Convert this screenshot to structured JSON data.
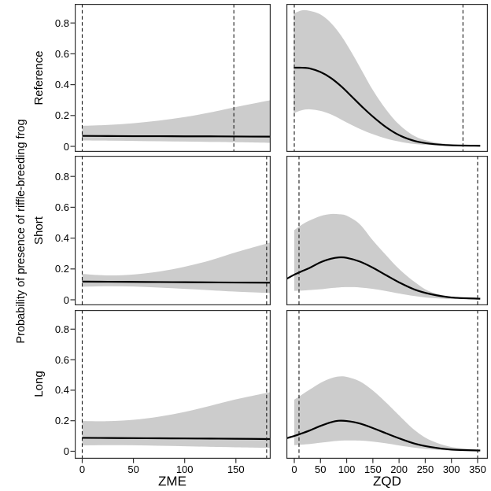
{
  "figure": {
    "ylabel": "Probability of presence of riffle-breeding frog",
    "row_labels": [
      "Reference",
      "Short",
      "Long"
    ],
    "col_xlabels": [
      "ZME",
      "ZQD"
    ],
    "ytick_labels": [
      "0",
      "0.2",
      "0.4",
      "0.6",
      "0.8"
    ],
    "colors": {
      "band": "#cccccc",
      "line": "#000000",
      "dashed": "#1a1a1a",
      "border": "#303030",
      "background": "#ffffff",
      "text": "#000000"
    }
  },
  "chart_data": [
    {
      "type": "line+area",
      "row": "Reference",
      "xlabel": "ZME",
      "ylim": [
        -0.04,
        0.92
      ],
      "xlim": [
        -7,
        184
      ],
      "yticks": [
        0,
        0.2,
        0.4,
        0.6,
        0.8
      ],
      "xticks": [
        0,
        50,
        100,
        150
      ],
      "show_xtick_labels": false,
      "dashed_x": [
        0,
        148
      ],
      "x": [
        0,
        25,
        50,
        75,
        100,
        125,
        150,
        184
      ],
      "fit": [
        0.068,
        0.067,
        0.066,
        0.066,
        0.065,
        0.065,
        0.064,
        0.063
      ],
      "band_x": [
        0,
        25,
        50,
        75,
        100,
        125,
        150,
        184
      ],
      "lower": [
        0.038,
        0.037,
        0.035,
        0.033,
        0.031,
        0.029,
        0.027,
        0.023
      ],
      "upper": [
        0.133,
        0.139,
        0.15,
        0.167,
        0.19,
        0.22,
        0.255,
        0.3
      ]
    },
    {
      "type": "line+area",
      "row": "Reference",
      "xlabel": "ZQD",
      "ylim": [
        -0.04,
        0.92
      ],
      "xlim": [
        -15,
        369
      ],
      "yticks": [
        0,
        0.2,
        0.4,
        0.6,
        0.8
      ],
      "xticks": [
        0,
        50,
        100,
        150,
        200,
        250,
        300,
        350
      ],
      "show_xtick_labels": false,
      "dashed_x": [
        0,
        322
      ],
      "x": [
        -1,
        15,
        30,
        50,
        70,
        90,
        110,
        130,
        150,
        175,
        200,
        230,
        260,
        300,
        355
      ],
      "fit": [
        0.51,
        0.51,
        0.505,
        0.482,
        0.443,
        0.388,
        0.322,
        0.255,
        0.193,
        0.125,
        0.073,
        0.035,
        0.017,
        0.007,
        0.004
      ],
      "band_x": [
        -1,
        15,
        30,
        50,
        70,
        90,
        110,
        130,
        150,
        175,
        200,
        230,
        260,
        300,
        355
      ],
      "lower": [
        0.215,
        0.235,
        0.24,
        0.23,
        0.207,
        0.173,
        0.138,
        0.106,
        0.079,
        0.051,
        0.031,
        0.015,
        0.008,
        0.003,
        0.002
      ],
      "upper": [
        0.862,
        0.882,
        0.878,
        0.855,
        0.8,
        0.715,
        0.605,
        0.485,
        0.365,
        0.24,
        0.142,
        0.066,
        0.032,
        0.013,
        0.007
      ]
    },
    {
      "type": "line+area",
      "row": "Short",
      "xlabel": "ZME",
      "ylim": [
        -0.04,
        0.92
      ],
      "xlim": [
        -7,
        184
      ],
      "yticks": [
        0,
        0.2,
        0.4,
        0.6,
        0.8
      ],
      "xticks": [
        0,
        50,
        100,
        150
      ],
      "show_xtick_labels": false,
      "dashed_x": [
        0,
        180
      ],
      "x": [
        0,
        25,
        50,
        75,
        100,
        125,
        150,
        184
      ],
      "fit": [
        0.118,
        0.117,
        0.116,
        0.115,
        0.114,
        0.113,
        0.112,
        0.111
      ],
      "band_x": [
        0,
        25,
        50,
        75,
        100,
        125,
        150,
        184
      ],
      "lower": [
        0.085,
        0.088,
        0.086,
        0.079,
        0.071,
        0.062,
        0.053,
        0.044
      ],
      "upper": [
        0.168,
        0.158,
        0.164,
        0.183,
        0.214,
        0.256,
        0.308,
        0.372
      ]
    },
    {
      "type": "line+area",
      "row": "Short",
      "xlabel": "ZQD",
      "ylim": [
        -0.04,
        0.92
      ],
      "xlim": [
        -15,
        369
      ],
      "yticks": [
        0,
        0.2,
        0.4,
        0.6,
        0.8
      ],
      "xticks": [
        0,
        50,
        100,
        150,
        200,
        250,
        300,
        350
      ],
      "show_xtick_labels": false,
      "dashed_x": [
        9,
        350
      ],
      "x": [
        -15,
        0,
        15,
        30,
        50,
        70,
        85,
        100,
        125,
        150,
        175,
        200,
        230,
        260,
        300,
        355
      ],
      "fit": [
        0.135,
        0.163,
        0.186,
        0.208,
        0.243,
        0.266,
        0.275,
        0.272,
        0.248,
        0.208,
        0.16,
        0.113,
        0.066,
        0.037,
        0.015,
        0.007
      ],
      "band_x": [
        0,
        15,
        30,
        50,
        70,
        85,
        100,
        125,
        150,
        175,
        200,
        230,
        260,
        300,
        350
      ],
      "lower": [
        0.058,
        0.06,
        0.063,
        0.068,
        0.076,
        0.08,
        0.082,
        0.08,
        0.071,
        0.057,
        0.041,
        0.024,
        0.012,
        0.005,
        0.002
      ],
      "upper": [
        0.452,
        0.488,
        0.515,
        0.543,
        0.556,
        0.555,
        0.545,
        0.49,
        0.385,
        0.29,
        0.2,
        0.115,
        0.052,
        0.02,
        0.009
      ]
    },
    {
      "type": "line+area",
      "row": "Long",
      "xlabel": "ZME",
      "ylim": [
        -0.04,
        0.92
      ],
      "xlim": [
        -7,
        184
      ],
      "yticks": [
        0,
        0.2,
        0.4,
        0.6,
        0.8
      ],
      "xticks": [
        0,
        50,
        100,
        150
      ],
      "show_xtick_labels": true,
      "dashed_x": [
        0,
        180
      ],
      "x": [
        0,
        25,
        50,
        75,
        100,
        125,
        150,
        184
      ],
      "fit": [
        0.088,
        0.087,
        0.086,
        0.085,
        0.084,
        0.083,
        0.082,
        0.08
      ],
      "band_x": [
        0,
        25,
        50,
        75,
        100,
        125,
        150,
        184
      ],
      "lower": [
        0.038,
        0.04,
        0.039,
        0.036,
        0.033,
        0.029,
        0.026,
        0.022
      ],
      "upper": [
        0.198,
        0.197,
        0.206,
        0.227,
        0.258,
        0.298,
        0.34,
        0.388
      ]
    },
    {
      "type": "line+area",
      "row": "Long",
      "xlabel": "ZQD",
      "ylim": [
        -0.04,
        0.92
      ],
      "xlim": [
        -15,
        369
      ],
      "yticks": [
        0,
        0.2,
        0.4,
        0.6,
        0.8
      ],
      "xticks": [
        0,
        50,
        100,
        150,
        200,
        250,
        300,
        350
      ],
      "show_xtick_labels": true,
      "dashed_x": [
        9,
        350
      ],
      "x": [
        -15,
        0,
        15,
        30,
        50,
        70,
        85,
        100,
        125,
        150,
        175,
        200,
        230,
        260,
        300,
        355
      ],
      "fit": [
        0.085,
        0.1,
        0.118,
        0.137,
        0.166,
        0.19,
        0.2,
        0.198,
        0.182,
        0.152,
        0.118,
        0.085,
        0.05,
        0.028,
        0.011,
        0.005
      ],
      "band_x": [
        0,
        15,
        30,
        50,
        70,
        85,
        100,
        125,
        150,
        175,
        200,
        230,
        260,
        300,
        350
      ],
      "lower": [
        0.04,
        0.044,
        0.048,
        0.056,
        0.064,
        0.069,
        0.071,
        0.07,
        0.063,
        0.052,
        0.038,
        0.023,
        0.012,
        0.005,
        0.002
      ],
      "upper": [
        0.338,
        0.372,
        0.405,
        0.448,
        0.478,
        0.49,
        0.487,
        0.458,
        0.398,
        0.32,
        0.235,
        0.138,
        0.072,
        0.028,
        0.011
      ]
    }
  ]
}
